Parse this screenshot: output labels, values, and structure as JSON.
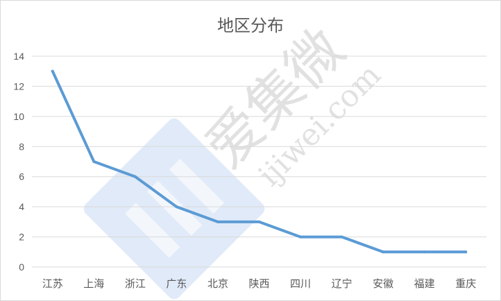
{
  "chart_data": {
    "type": "line",
    "title": "地区分布",
    "categories": [
      "江苏",
      "上海",
      "浙江",
      "广东",
      "北京",
      "陕西",
      "四川",
      "辽宁",
      "安徽",
      "福建",
      "重庆"
    ],
    "series": [
      {
        "values": [
          13,
          7,
          6,
          4,
          3,
          3,
          2,
          2,
          1,
          1,
          1
        ]
      }
    ],
    "ylim": [
      0,
      14
    ],
    "yticks": [
      0,
      2,
      4,
      6,
      8,
      10,
      12,
      14
    ],
    "grid": true,
    "line_color": "#5b9bd5"
  },
  "watermark": {
    "brand": "爱集微",
    "domain": "ijiwei.com",
    "logo_color": "#a9c4ea"
  }
}
